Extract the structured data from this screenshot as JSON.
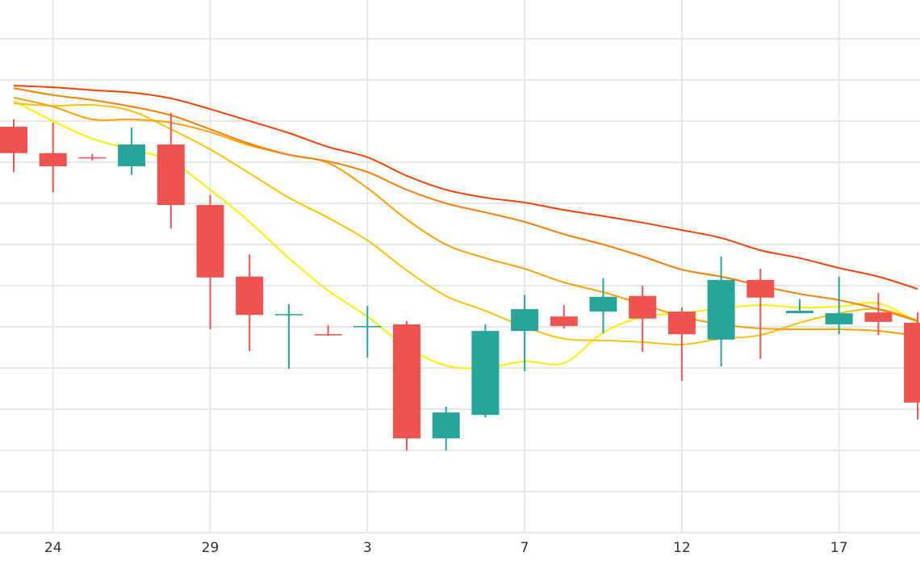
{
  "chart_data": {
    "type": "candlestick",
    "title": "",
    "xlabel": "",
    "ylabel": "",
    "ylim": [
      0,
      129.4
    ],
    "y_grid_step": 10,
    "grid": true,
    "x_ticks": [
      {
        "index": 1,
        "label": "24"
      },
      {
        "index": 5,
        "label": "29"
      },
      {
        "index": 9,
        "label": "3"
      },
      {
        "index": 13,
        "label": "7"
      },
      {
        "index": 17,
        "label": "12"
      },
      {
        "index": 21,
        "label": "17"
      }
    ],
    "colors": {
      "up": "#26a69a",
      "down": "#ef5350",
      "grid": "#e6e6e6"
    },
    "candles": [
      {
        "o": 98.6,
        "h": 100.4,
        "l": 87.6,
        "c": 92.2
      },
      {
        "o": 92.2,
        "h": 99.6,
        "l": 82.7,
        "c": 89.0
      },
      {
        "o": 91.2,
        "h": 92.0,
        "l": 90.4,
        "c": 91.0
      },
      {
        "o": 89.0,
        "h": 98.4,
        "l": 86.9,
        "c": 94.3
      },
      {
        "o": 94.3,
        "h": 102.0,
        "l": 73.9,
        "c": 79.6
      },
      {
        "o": 79.6,
        "h": 82.0,
        "l": 49.4,
        "c": 62.0
      },
      {
        "o": 62.2,
        "h": 67.6,
        "l": 44.1,
        "c": 52.9
      },
      {
        "o": 52.9,
        "h": 55.5,
        "l": 39.8,
        "c": 53.1
      },
      {
        "o": 48.2,
        "h": 50.4,
        "l": 47.8,
        "c": 48.0
      },
      {
        "o": 50.0,
        "h": 55.1,
        "l": 42.5,
        "c": 50.2
      },
      {
        "o": 50.6,
        "h": 51.4,
        "l": 20.0,
        "c": 22.9
      },
      {
        "o": 22.9,
        "h": 30.6,
        "l": 20.0,
        "c": 29.2
      },
      {
        "o": 28.6,
        "h": 50.6,
        "l": 28.0,
        "c": 49.0
      },
      {
        "o": 49.0,
        "h": 57.8,
        "l": 39.2,
        "c": 54.3
      },
      {
        "o": 52.5,
        "h": 55.3,
        "l": 49.6,
        "c": 50.2
      },
      {
        "o": 53.7,
        "h": 61.8,
        "l": 48.4,
        "c": 57.3
      },
      {
        "o": 57.5,
        "h": 60.0,
        "l": 43.9,
        "c": 52.0
      },
      {
        "o": 53.7,
        "h": 54.7,
        "l": 36.9,
        "c": 48.2
      },
      {
        "o": 46.9,
        "h": 67.1,
        "l": 40.4,
        "c": 61.4
      },
      {
        "o": 61.4,
        "h": 64.1,
        "l": 42.2,
        "c": 57.1
      },
      {
        "o": 53.3,
        "h": 56.7,
        "l": 53.3,
        "c": 53.9
      },
      {
        "o": 50.6,
        "h": 62.2,
        "l": 48.2,
        "c": 53.3
      },
      {
        "o": 53.5,
        "h": 58.2,
        "l": 48.0,
        "c": 51.2
      },
      {
        "o": 51.0,
        "h": 53.5,
        "l": 27.5,
        "c": 31.6
      }
    ],
    "series": [
      {
        "name": "ma-yellow",
        "color": "#ffee00",
        "values": [
          104.9,
          100.0,
          95.7,
          93.1,
          90.2,
          83.3,
          75.5,
          66.7,
          58.8,
          52.5,
          45.1,
          40.6,
          40.0,
          41.6,
          41.2,
          48.6,
          52.4,
          53.3,
          54.5,
          55.3,
          54.7,
          54.9,
          55.7,
          51.0
        ]
      },
      {
        "name": "ma-gold",
        "color": "#ffc107",
        "values": [
          104.3,
          103.7,
          103.9,
          102.4,
          98.0,
          93.1,
          87.3,
          81.4,
          76.5,
          71.0,
          63.7,
          57.5,
          53.9,
          50.0,
          47.1,
          46.7,
          46.3,
          45.7,
          47.1,
          48.0,
          51.0,
          53.3,
          54.3,
          51.6
        ]
      },
      {
        "name": "ma-amber",
        "color": "#ffa000",
        "values": [
          105.7,
          103.5,
          100.4,
          100.4,
          99.6,
          97.3,
          94.1,
          91.8,
          89.8,
          83.7,
          76.1,
          70.0,
          66.7,
          64.1,
          60.8,
          58.4,
          55.5,
          52.5,
          50.6,
          49.6,
          49.4,
          49.4,
          49.0,
          47.8
        ]
      },
      {
        "name": "ma-orange",
        "color": "#ff7a00",
        "values": [
          108.0,
          106.3,
          105.1,
          103.5,
          101.4,
          98.0,
          94.5,
          91.8,
          90.2,
          87.6,
          83.3,
          80.0,
          77.8,
          75.5,
          72.5,
          70.0,
          67.1,
          63.9,
          62.2,
          60.0,
          58.0,
          56.5,
          54.3,
          51.4
        ]
      },
      {
        "name": "ma-red",
        "color": "#ff4000",
        "values": [
          108.6,
          108.2,
          107.5,
          106.9,
          105.5,
          102.9,
          100.0,
          97.1,
          93.7,
          91.2,
          86.7,
          83.3,
          81.4,
          80.2,
          78.4,
          76.9,
          75.3,
          73.5,
          71.6,
          68.6,
          66.7,
          64.3,
          62.2,
          59.2
        ]
      }
    ]
  }
}
